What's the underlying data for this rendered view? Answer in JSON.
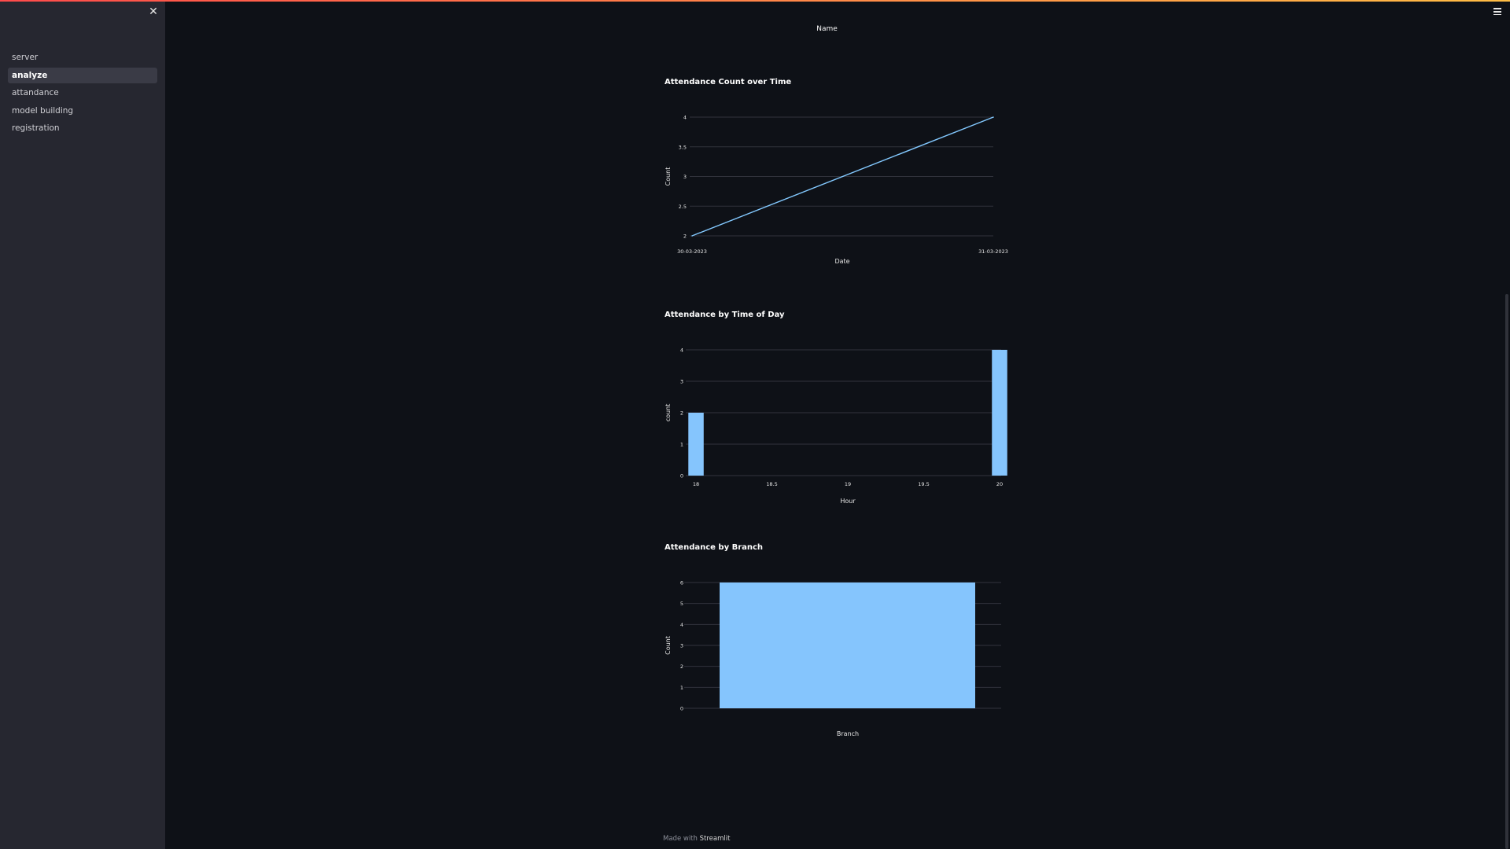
{
  "sidebar": {
    "close_icon": "close-icon",
    "items": [
      {
        "label": "server",
        "active": false
      },
      {
        "label": "analyze",
        "active": true
      },
      {
        "label": "attandance",
        "active": false
      },
      {
        "label": "model building",
        "active": false
      },
      {
        "label": "registration",
        "active": false
      }
    ]
  },
  "header": {
    "menu_icon": "hamburger-menu-icon"
  },
  "main": {
    "name_label": "Name"
  },
  "colors": {
    "accent": "#85c5fd",
    "line": "#83c9ff",
    "background": "#0e1117",
    "sidebar": "#262730"
  },
  "chart_data": [
    {
      "type": "line",
      "title": "Attendance Count over Time",
      "xlabel": "Date",
      "ylabel": "Count",
      "x": [
        "30-03-2023",
        "31-03-2023"
      ],
      "series": [
        {
          "values": [
            2,
            4
          ]
        }
      ],
      "ylim": [
        2,
        4
      ],
      "yticks": [
        "2",
        "2.5",
        "3",
        "3.5",
        "4"
      ],
      "grid": true
    },
    {
      "type": "bar",
      "title": "Attendance by Time of Day",
      "xlabel": "Hour",
      "ylabel": "count",
      "x": [
        18,
        20
      ],
      "values": [
        2,
        4
      ],
      "xlim": [
        18,
        20
      ],
      "xticks": [
        "18",
        "18.5",
        "19",
        "19.5",
        "20"
      ],
      "ylim": [
        0,
        4
      ],
      "yticks": [
        "0",
        "1",
        "2",
        "3",
        "4"
      ],
      "grid": true
    },
    {
      "type": "bar",
      "title": "Attendance by Branch",
      "xlabel": "Branch",
      "ylabel": "Count",
      "categories": [
        ""
      ],
      "values": [
        6
      ],
      "ylim": [
        0,
        6
      ],
      "yticks": [
        "0",
        "1",
        "2",
        "3",
        "4",
        "5",
        "6"
      ],
      "grid": true
    }
  ],
  "footer": {
    "prefix": "Made with",
    "brand": "Streamlit"
  }
}
